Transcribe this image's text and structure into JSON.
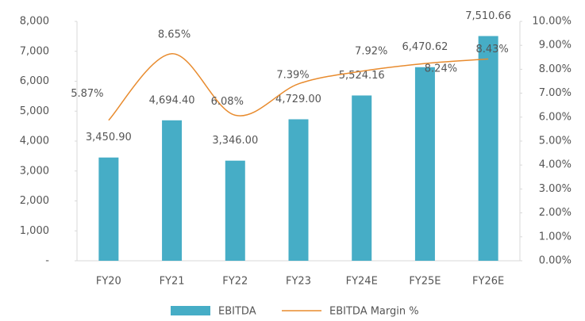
{
  "chart_data": {
    "type": "bar-line",
    "categories": [
      "FY20",
      "FY21",
      "FY22",
      "FY23",
      "FY24E",
      "FY25E",
      "FY26E"
    ],
    "series": [
      {
        "name": "EBITDA",
        "type": "bar",
        "color": "#46adc6",
        "values": [
          3450.9,
          4694.4,
          3346.0,
          4729.0,
          5524.16,
          6470.62,
          7510.66
        ],
        "value_labels": [
          "3,450.90",
          "4,694.40",
          "3,346.00",
          "4,729.00",
          "5,524.16",
          "6,470.62",
          "7,510.66"
        ]
      },
      {
        "name": "EBITDA Margin %",
        "type": "line",
        "axis": "y2",
        "color": "#e88b2e",
        "values": [
          5.87,
          8.65,
          6.08,
          7.39,
          7.92,
          8.24,
          8.43
        ],
        "value_labels": [
          "5.87%",
          "8.65%",
          "6.08%",
          "7.39%",
          "7.92%",
          "8.24%",
          "8.43%"
        ]
      }
    ],
    "ylim": [
      0,
      8000
    ],
    "yticks": [
      {
        "value": 0,
        "label": "-"
      },
      {
        "value": 1000,
        "label": "1,000"
      },
      {
        "value": 2000,
        "label": "2,000"
      },
      {
        "value": 3000,
        "label": "3,000"
      },
      {
        "value": 4000,
        "label": "4,000"
      },
      {
        "value": 5000,
        "label": "5,000"
      },
      {
        "value": 6000,
        "label": "6,000"
      },
      {
        "value": 7000,
        "label": "7,000"
      },
      {
        "value": 8000,
        "label": "8,000"
      }
    ],
    "y2lim": [
      0,
      10
    ],
    "y2ticks": [
      {
        "value": 0,
        "label": "0.00%"
      },
      {
        "value": 1,
        "label": "1.00%"
      },
      {
        "value": 2,
        "label": "2.00%"
      },
      {
        "value": 3,
        "label": "3.00%"
      },
      {
        "value": 4,
        "label": "4.00%"
      },
      {
        "value": 5,
        "label": "5.00%"
      },
      {
        "value": 6,
        "label": "6.00%"
      },
      {
        "value": 7,
        "label": "7.00%"
      },
      {
        "value": 8,
        "label": "8.00%"
      },
      {
        "value": 9,
        "label": "9.00%"
      },
      {
        "value": 10,
        "label": "10.00%"
      }
    ],
    "legend": "bottom",
    "grid": false
  }
}
